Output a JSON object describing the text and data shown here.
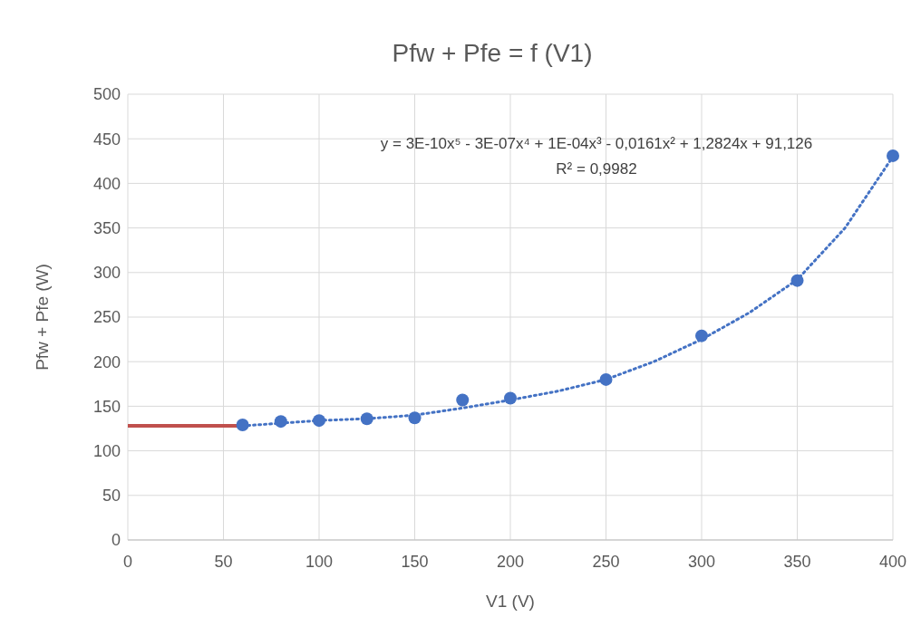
{
  "chart_data": {
    "type": "scatter",
    "title": "Pfw + Pfe = f (V1)",
    "xlabel": "V1 (V)",
    "ylabel": "Pfw + Pfe (W)",
    "annotations": [
      "y = 3E-10x⁵ - 3E-07x⁴ + 1E-04x³ - 0,0161x² + 1,2824x + 91,126",
      "R² = 0,9982"
    ],
    "xlim": [
      0,
      400
    ],
    "xticks": [
      0,
      50,
      100,
      150,
      200,
      250,
      300,
      350,
      400
    ],
    "ylim": [
      0,
      500
    ],
    "yticks": [
      0,
      50,
      100,
      150,
      200,
      250,
      300,
      350,
      400,
      450,
      500
    ],
    "grid": true,
    "series": [
      {
        "type": "line",
        "color": "#c0504d",
        "line_style": "solid",
        "x": [
          0,
          60
        ],
        "values": [
          128,
          128
        ]
      },
      {
        "type": "line",
        "color": "#4472c4",
        "line_style": "dotted",
        "x": [
          60,
          80,
          100,
          125,
          150,
          175,
          200,
          225,
          250,
          275,
          300,
          325,
          350,
          375,
          400
        ],
        "values": [
          128,
          131,
          134,
          136,
          140,
          148,
          157,
          167,
          180,
          200,
          225,
          255,
          292,
          350,
          430
        ]
      },
      {
        "color": "#4472c4",
        "marker": "circle",
        "x": [
          60,
          80,
          100,
          125,
          150,
          175,
          200,
          250,
          300,
          350,
          400
        ],
        "values": [
          129,
          133,
          134,
          136,
          137,
          157,
          159,
          180,
          229,
          291,
          431
        ]
      }
    ]
  }
}
